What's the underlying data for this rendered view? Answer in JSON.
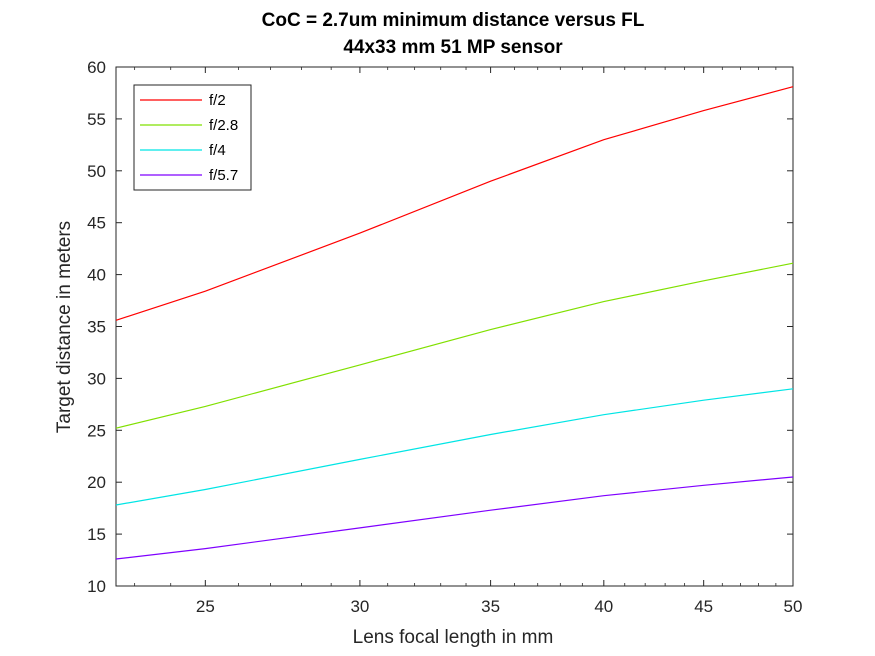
{
  "chart_data": {
    "type": "line",
    "title": [
      "CoC = 2.7um minimum distance versus FL",
      "44x33 mm 51 MP sensor"
    ],
    "xlabel": "Lens focal length in mm",
    "ylabel": "Target distance in meters",
    "xscale": "log",
    "xlim": [
      22.5,
      50
    ],
    "ylim": [
      10,
      60
    ],
    "xticks": [
      25,
      30,
      35,
      40,
      45,
      50
    ],
    "xtick_labels": [
      "25",
      "30",
      "35",
      "40",
      "45",
      "50"
    ],
    "yticks": [
      10,
      15,
      20,
      25,
      30,
      35,
      40,
      45,
      50,
      55,
      60
    ],
    "ytick_labels": [
      "10",
      "15",
      "20",
      "25",
      "30",
      "35",
      "40",
      "45",
      "50",
      "55",
      "60"
    ],
    "grid": false,
    "legend_position": "top-left",
    "x": [
      22.5,
      25,
      30,
      35,
      40,
      45,
      50
    ],
    "series": [
      {
        "name": "f/2",
        "color": "#ff0000",
        "values": [
          35.6,
          38.4,
          44.0,
          49.0,
          53.0,
          55.8,
          58.1
        ]
      },
      {
        "name": "f/2.8",
        "color": "#80e000",
        "values": [
          25.2,
          27.3,
          31.3,
          34.7,
          37.4,
          39.4,
          41.1
        ]
      },
      {
        "name": "f/4",
        "color": "#00e5e5",
        "values": [
          17.8,
          19.3,
          22.2,
          24.6,
          26.5,
          27.9,
          29.0
        ]
      },
      {
        "name": "f/5.7",
        "color": "#7f00ff",
        "values": [
          12.6,
          13.6,
          15.6,
          17.3,
          18.7,
          19.7,
          20.5
        ]
      }
    ]
  }
}
